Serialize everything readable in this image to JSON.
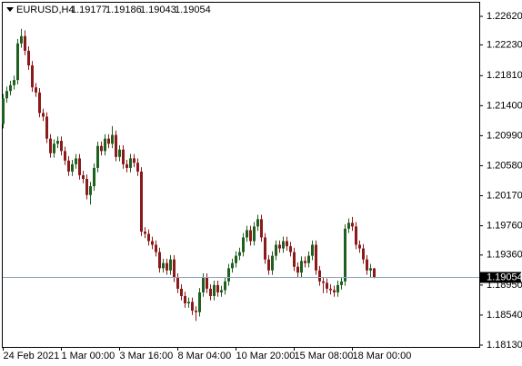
{
  "chart_data": {
    "type": "candlestick",
    "title": "EURUSD,H4",
    "up_color": "#1f5f1f",
    "down_color": "#8b1a1a",
    "price_line_color": "#8fa6b8",
    "ylim": [
      1.18105,
      1.22806
    ],
    "yticks": [
      {
        "value": 1.2262,
        "label": "1.22620"
      },
      {
        "value": 1.2223,
        "label": "1.22230"
      },
      {
        "value": 1.2181,
        "label": "1.21810"
      },
      {
        "value": 1.214,
        "label": "1.21400"
      },
      {
        "value": 1.2099,
        "label": "1.20990"
      },
      {
        "value": 1.2058,
        "label": "1.20580"
      },
      {
        "value": 1.2017,
        "label": "1.20170"
      },
      {
        "value": 1.1976,
        "label": "1.19760"
      },
      {
        "value": 1.1936,
        "label": "1.19360"
      },
      {
        "value": 1.1895,
        "label": "1.18950"
      },
      {
        "value": 1.1854,
        "label": "1.18540"
      },
      {
        "value": 1.1813,
        "label": "1.18130"
      }
    ],
    "x": [
      "24 Feb 2021",
      null,
      null,
      null,
      null,
      null,
      null,
      null,
      null,
      null,
      null,
      null,
      null,
      null,
      null,
      null,
      "1 Mar 00:00",
      null,
      null,
      null,
      null,
      null,
      null,
      null,
      null,
      null,
      null,
      null,
      null,
      null,
      null,
      null,
      "3 Mar 16:00",
      null,
      null,
      null,
      null,
      null,
      null,
      null,
      null,
      null,
      null,
      null,
      null,
      null,
      null,
      null,
      "8 Mar 04:00",
      null,
      null,
      null,
      null,
      null,
      null,
      null,
      null,
      null,
      null,
      null,
      null,
      null,
      null,
      null,
      "10 Mar 20:00",
      null,
      null,
      null,
      null,
      null,
      null,
      null,
      null,
      null,
      null,
      null,
      null,
      null,
      null,
      null,
      "15 Mar 08:00",
      null,
      null,
      null,
      null,
      null,
      null,
      null,
      null,
      null,
      null,
      null,
      null,
      null,
      null,
      null,
      "18 Mar 00:00",
      null,
      null,
      null,
      null,
      null,
      null
    ],
    "open": [
      1.2115,
      1.215,
      1.216,
      1.2168,
      1.2175,
      1.2225,
      1.2235,
      1.2215,
      1.2195,
      1.2165,
      1.2158,
      1.213,
      1.2125,
      1.2095,
      1.2075,
      1.2088,
      1.2092,
      1.2078,
      1.2065,
      1.205,
      1.206,
      1.2068,
      1.2045,
      1.204,
      1.2018,
      1.203,
      1.2055,
      1.2085,
      1.2078,
      1.2095,
      1.2088,
      1.21,
      1.207,
      1.208,
      1.206,
      1.2055,
      1.2068,
      1.2062,
      1.205,
      1.1968,
      1.1965,
      1.1955,
      1.195,
      1.194,
      1.1918,
      1.1925,
      1.1915,
      1.193,
      1.1905,
      1.189,
      1.188,
      1.187,
      1.1872,
      1.186,
      1.1858,
      1.1885,
      1.1905,
      1.189,
      1.188,
      1.1895,
      1.1885,
      1.1888,
      1.19,
      1.1918,
      1.1925,
      1.1935,
      1.194,
      1.196,
      1.197,
      1.1955,
      1.1975,
      1.1985,
      1.196,
      1.193,
      1.1915,
      1.1935,
      1.195,
      1.1945,
      1.1955,
      1.1948,
      1.194,
      1.192,
      1.1912,
      1.1928,
      1.1925,
      1.1935,
      1.195,
      1.1915,
      1.19,
      1.1898,
      1.189,
      1.1888,
      1.1885,
      1.1895,
      1.19,
      1.1972,
      1.198,
      1.1975,
      1.195,
      1.1945,
      1.193,
      1.1915,
      1.19177
    ],
    "high": [
      1.2156,
      1.2166,
      1.2174,
      1.2181,
      1.2231,
      1.2245,
      1.2243,
      1.2221,
      1.2201,
      1.2171,
      1.2164,
      1.2136,
      1.2131,
      1.2101,
      1.2094,
      1.2098,
      1.2098,
      1.2084,
      1.2071,
      1.2066,
      1.2074,
      1.2074,
      1.2051,
      1.2046,
      1.2036,
      1.2061,
      1.2091,
      1.2091,
      1.2101,
      1.2101,
      1.2112,
      1.2106,
      1.2086,
      1.2086,
      1.2066,
      1.2074,
      1.2074,
      1.2068,
      1.2056,
      1.1974,
      1.1971,
      1.1961,
      1.1956,
      1.1946,
      1.1931,
      1.1931,
      1.1936,
      1.1936,
      1.1911,
      1.1896,
      1.1886,
      1.1878,
      1.1878,
      1.1866,
      1.1891,
      1.1911,
      1.1911,
      1.1896,
      1.1901,
      1.1901,
      1.1894,
      1.1906,
      1.1924,
      1.1931,
      1.1941,
      1.1946,
      1.1966,
      1.1976,
      1.1976,
      1.1981,
      1.1991,
      1.1991,
      1.1966,
      1.1936,
      1.1941,
      1.1956,
      1.1956,
      1.1961,
      1.1961,
      1.1954,
      1.1946,
      1.1926,
      1.1934,
      1.1934,
      1.1941,
      1.1956,
      1.1956,
      1.1921,
      1.1906,
      1.1904,
      1.1896,
      1.1894,
      1.1901,
      1.1906,
      1.1978,
      1.1986,
      1.1988,
      1.1981,
      1.1956,
      1.1951,
      1.1936,
      1.1924,
      1.19186
    ],
    "low": [
      1.2109,
      1.2144,
      1.2154,
      1.2162,
      1.2169,
      1.2219,
      1.2209,
      1.2189,
      1.2159,
      1.2152,
      1.2124,
      1.2119,
      1.2089,
      1.2069,
      1.2069,
      1.2082,
      1.2072,
      1.2059,
      1.2044,
      1.2044,
      1.2054,
      1.2039,
      1.2034,
      1.2012,
      1.2005,
      1.2024,
      1.2049,
      1.2072,
      1.2072,
      1.2082,
      1.2082,
      1.2064,
      1.2064,
      1.2054,
      1.2049,
      1.2049,
      1.2056,
      1.2044,
      1.1962,
      1.1959,
      1.1949,
      1.1944,
      1.1934,
      1.1912,
      1.1912,
      1.1909,
      1.1909,
      1.1899,
      1.1884,
      1.1874,
      1.1864,
      1.1864,
      1.1854,
      1.1846,
      1.1852,
      1.1879,
      1.1884,
      1.1874,
      1.1874,
      1.1879,
      1.1879,
      1.1882,
      1.1894,
      1.1912,
      1.1919,
      1.1929,
      1.1934,
      1.1954,
      1.1949,
      1.1949,
      1.1969,
      1.1954,
      1.1924,
      1.1909,
      1.1909,
      1.1929,
      1.1939,
      1.1939,
      1.1942,
      1.1934,
      1.1914,
      1.1906,
      1.1906,
      1.1919,
      1.1919,
      1.1929,
      1.1909,
      1.1894,
      1.1884,
      1.1884,
      1.1882,
      1.1879,
      1.1879,
      1.1889,
      1.1894,
      1.1966,
      1.1969,
      1.1944,
      1.1939,
      1.1924,
      1.1909,
      1.1906,
      1.19043
    ],
    "close": [
      1.215,
      1.216,
      1.2168,
      1.2175,
      1.2225,
      1.2235,
      1.2215,
      1.2195,
      1.2165,
      1.2158,
      1.213,
      1.2125,
      1.2095,
      1.2075,
      1.2088,
      1.2092,
      1.2078,
      1.2065,
      1.205,
      1.206,
      1.2068,
      1.2045,
      1.204,
      1.2018,
      1.203,
      1.2055,
      1.2085,
      1.2078,
      1.2095,
      1.2088,
      1.21,
      1.207,
      1.208,
      1.206,
      1.2055,
      1.2068,
      1.2062,
      1.205,
      1.1968,
      1.1965,
      1.1955,
      1.195,
      1.194,
      1.1918,
      1.1925,
      1.1915,
      1.193,
      1.1905,
      1.189,
      1.188,
      1.187,
      1.1872,
      1.186,
      1.1858,
      1.1885,
      1.1905,
      1.189,
      1.188,
      1.1895,
      1.1885,
      1.1888,
      1.19,
      1.1918,
      1.1925,
      1.1935,
      1.194,
      1.196,
      1.197,
      1.1955,
      1.1975,
      1.1985,
      1.196,
      1.193,
      1.1915,
      1.1935,
      1.195,
      1.1945,
      1.1955,
      1.1948,
      1.194,
      1.192,
      1.1912,
      1.1928,
      1.1925,
      1.1935,
      1.195,
      1.1915,
      1.19,
      1.1898,
      1.189,
      1.1888,
      1.1885,
      1.1895,
      1.19,
      1.1972,
      1.198,
      1.1975,
      1.195,
      1.1945,
      1.193,
      1.1915,
      1.1918,
      1.19054
    ]
  }
}
